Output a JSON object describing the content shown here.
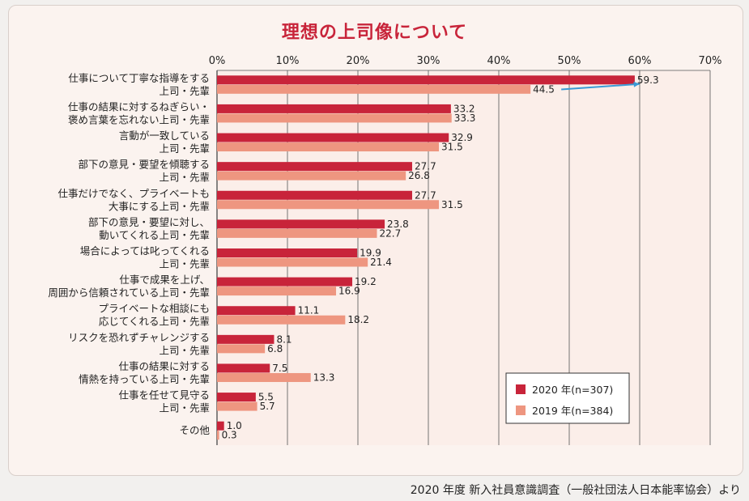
{
  "footer": {
    "source": "2020 年度 新入社員意識調査（一般社団法人日本能率協会）より"
  },
  "colors": {
    "series_2020": "#c8243a",
    "series_2019": "#ee9680",
    "grid": "#555555",
    "arrow": "#3a9bd6",
    "title": "#c8243a"
  },
  "chart_data": {
    "type": "bar",
    "orientation": "horizontal",
    "title": "理想の上司像について",
    "xlim": [
      0,
      70
    ],
    "xticks": [
      "0%",
      "10%",
      "20%",
      "30%",
      "40%",
      "50%",
      "60%",
      "70%"
    ],
    "grid": true,
    "legend_position": "bottom-right",
    "categories": [
      [
        "仕事について丁寧な指導をする",
        "上司・先輩"
      ],
      [
        "仕事の結果に対するねぎらい・",
        "褒め言葉を忘れない上司・先輩"
      ],
      [
        "言動が一致している",
        "上司・先輩"
      ],
      [
        "部下の意見・要望を傾聴する",
        "上司・先輩"
      ],
      [
        "仕事だけでなく、プライベートも",
        "大事にする上司・先輩"
      ],
      [
        "部下の意見・要望に対し、",
        "動いてくれる上司・先輩"
      ],
      [
        "場合によっては叱ってくれる",
        "上司・先輩"
      ],
      [
        "仕事で成果を上げ、",
        "周囲から信頼されている上司・先輩"
      ],
      [
        "プライベートな相談にも",
        "応じてくれる上司・先輩"
      ],
      [
        "リスクを恐れずチャレンジする",
        "上司・先輩"
      ],
      [
        "仕事の結果に対する",
        "情熱を持っている上司・先輩"
      ],
      [
        "仕事を任せて見守る",
        "上司・先輩"
      ],
      [
        "その他"
      ]
    ],
    "series": [
      {
        "name": "2020 年(n=307)",
        "values": [
          59.3,
          33.2,
          32.9,
          27.7,
          27.7,
          23.8,
          19.9,
          19.2,
          11.1,
          8.1,
          7.5,
          5.5,
          1.0
        ]
      },
      {
        "name": "2019 年(n=384)",
        "values": [
          44.5,
          33.3,
          31.5,
          26.8,
          31.5,
          22.7,
          21.4,
          16.9,
          18.2,
          6.8,
          13.3,
          5.7,
          0.3
        ]
      }
    ],
    "annotation": {
      "type": "arrow",
      "from_series": 1,
      "to_series": 0,
      "category_index": 0
    }
  }
}
